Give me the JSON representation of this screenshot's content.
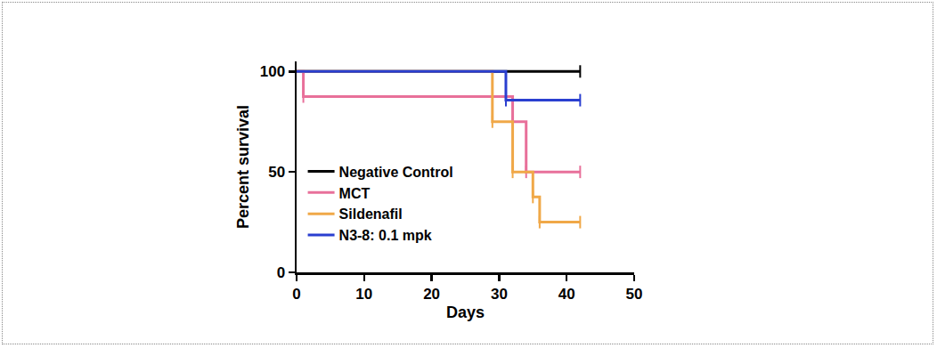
{
  "chart_data": {
    "type": "line",
    "line_style": "step",
    "x_label": "Days",
    "y_label": "Percent survival",
    "xlim": [
      0,
      50
    ],
    "xticks": [
      0,
      10,
      20,
      30,
      40,
      50
    ],
    "ylim": [
      0,
      105
    ],
    "yticks": [
      0,
      50,
      100
    ],
    "grid": false,
    "legend": "left",
    "series": [
      {
        "name": "Negative Control",
        "color": "#000000",
        "x": [
          0,
          42
        ],
        "values": [
          100,
          100
        ],
        "censored": {
          "x": [
            42
          ],
          "y": [
            100
          ]
        }
      },
      {
        "name": "MCT",
        "color": "#e8709a",
        "x": [
          0,
          1,
          32,
          34,
          42
        ],
        "values": [
          100,
          87.5,
          75,
          50,
          50
        ],
        "censored": {
          "x": [
            1,
            32,
            34,
            42
          ],
          "y": [
            87.5,
            75,
            50,
            50
          ]
        }
      },
      {
        "name": "Sildenafil",
        "color": "#f0a848",
        "x": [
          0,
          29,
          32,
          35,
          36,
          42
        ],
        "values": [
          100,
          75,
          50,
          37.5,
          25,
          25
        ],
        "censored": {
          "x": [
            29,
            32,
            35,
            36,
            42
          ],
          "y": [
            75,
            50,
            37.5,
            25,
            25
          ]
        }
      },
      {
        "name": "N3-8: 0.1 mpk",
        "color": "#2a3fd0",
        "x": [
          0,
          31,
          42
        ],
        "values": [
          100,
          85.7,
          85.7
        ],
        "censored": {
          "x": [
            31,
            42
          ],
          "y": [
            85.7,
            85.7
          ]
        }
      }
    ]
  }
}
